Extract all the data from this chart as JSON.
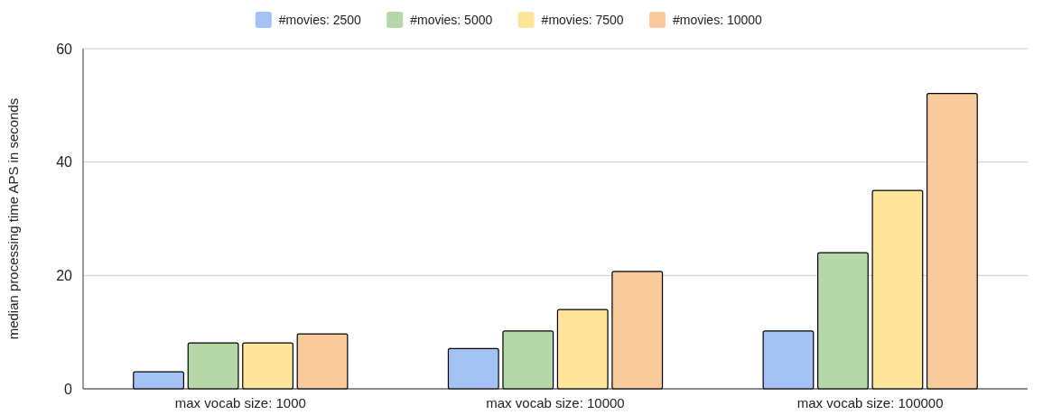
{
  "chart_data": {
    "type": "bar",
    "ylabel": "median processing time APS in seconds",
    "categories": [
      "max vocab size: 1000",
      "max vocab size: 10000",
      "max vocab size: 100000"
    ],
    "series": [
      {
        "name": "#movies: 2500",
        "color": "#a4c2f4",
        "values": [
          3,
          7.1,
          10.2
        ]
      },
      {
        "name": "#movies: 5000",
        "color": "#b6d7a8",
        "values": [
          8.1,
          10.2,
          24
        ]
      },
      {
        "name": "#movies: 7500",
        "color": "#ffe599",
        "values": [
          8.1,
          14,
          35
        ]
      },
      {
        "name": "#movies: 10000",
        "color": "#f9cb9c",
        "values": [
          9.7,
          20.7,
          52.1
        ]
      }
    ],
    "ylim": [
      0,
      60
    ],
    "yticks": [
      0,
      20,
      40,
      60
    ],
    "grid": "y",
    "legend": "top"
  }
}
